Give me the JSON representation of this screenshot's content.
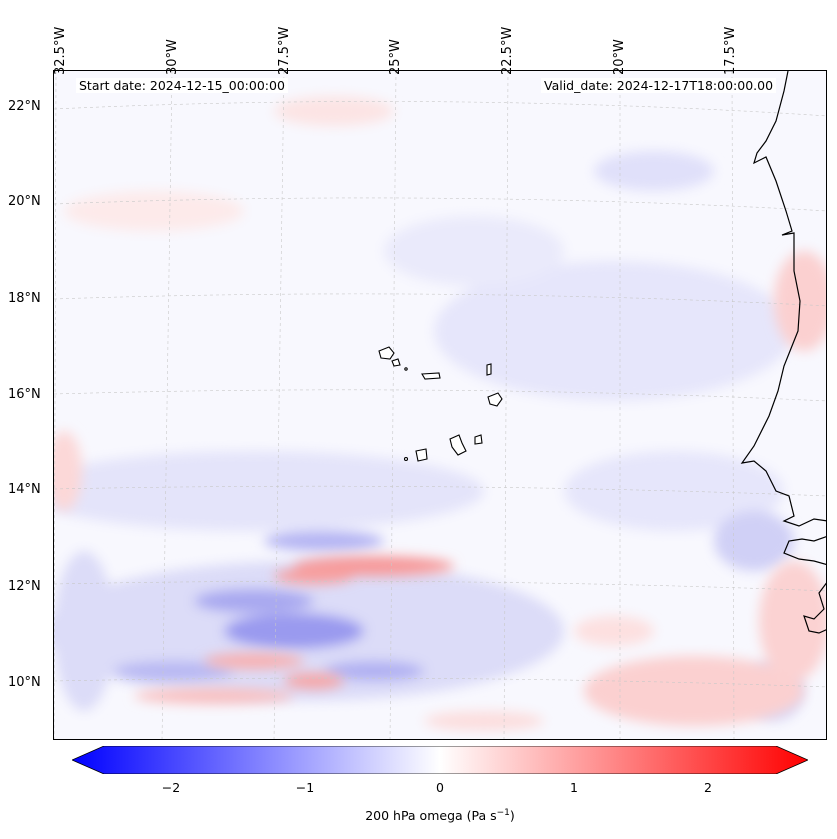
{
  "map": {
    "start_date": "Start date: 2024-12-15_00:00:00",
    "valid_date": "Valid_date: 2024-12-17T18:00:00.00",
    "lon_labels": [
      "32.5°W",
      "30°W",
      "27.5°W",
      "25°W",
      "22.5°W",
      "20°W",
      "17.5°W"
    ],
    "lat_labels": [
      "22°N",
      "20°N",
      "18°N",
      "16°N",
      "14°N",
      "12°N",
      "10°N"
    ],
    "field_name": "200 hPa omega",
    "features": [
      "Cape Verde islands",
      "West African coastline"
    ]
  },
  "colorbar": {
    "label_prefix": "200 hPa omega (Pa s",
    "label_exponent": "−1",
    "label_suffix": ")",
    "ticks": [
      "−2",
      "−1",
      "0",
      "1",
      "2"
    ],
    "tick_values": [
      -2,
      -1,
      0,
      1,
      2
    ],
    "vmin": -2.5,
    "vmax": 2.5,
    "low_color": "#0000ff",
    "mid_color": "#ffffff",
    "high_color": "#ff0000"
  }
}
